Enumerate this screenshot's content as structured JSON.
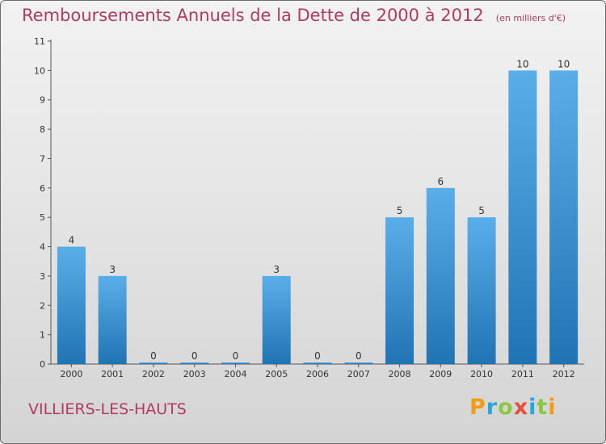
{
  "chart_data": {
    "type": "bar",
    "title": "Remboursements Annuels de la Dette de 2000 à 2012",
    "unit": "(en milliers d'€)",
    "categories": [
      "2000",
      "2001",
      "2002",
      "2003",
      "2004",
      "2005",
      "2006",
      "2007",
      "2008",
      "2009",
      "2010",
      "2011",
      "2012"
    ],
    "values": [
      4,
      3,
      0,
      0,
      0,
      3,
      0,
      0,
      5,
      6,
      5,
      10,
      10
    ],
    "ylim": [
      0,
      11
    ],
    "yticks": [
      0,
      1,
      2,
      3,
      4,
      5,
      6,
      7,
      8,
      9,
      10,
      11
    ],
    "grid": false,
    "xlabel": "",
    "ylabel": ""
  },
  "location": "VILLIERS-LES-HAUTS",
  "logo": {
    "text": "Proxiti",
    "letters": [
      "P",
      "r",
      "o",
      "x",
      "i",
      "t",
      "i"
    ],
    "colors": [
      "#f39c12",
      "#27a7d8",
      "#8dc63f",
      "#e84e3c",
      "#27a7d8",
      "#8dc63f",
      "#f39c12"
    ]
  },
  "colors": {
    "bar_light": "#5aaee8",
    "bar_dark": "#1f6fb0",
    "title": "#b03a63"
  }
}
